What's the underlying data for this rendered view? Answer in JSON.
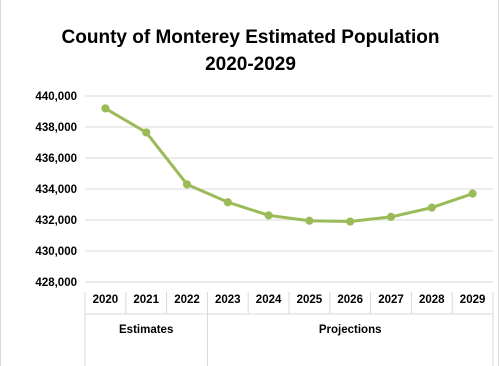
{
  "chart_data": {
    "type": "line",
    "title": "County of Monterey Estimated Population",
    "subtitle": "2020-2029",
    "x": [
      "2020",
      "2021",
      "2022",
      "2023",
      "2024",
      "2025",
      "2026",
      "2027",
      "2028",
      "2029"
    ],
    "series": [
      {
        "values": [
          439200,
          437650,
          434300,
          433150,
          432300,
          431950,
          431900,
          432200,
          432800,
          433700
        ],
        "color": "#9bbb59"
      }
    ],
    "ylim": [
      428000,
      440000
    ],
    "y_ticks": [
      "440,000",
      "438,000",
      "436,000",
      "434,000",
      "432,000",
      "430,000",
      "428,000"
    ],
    "y_tick_values": [
      440000,
      438000,
      436000,
      434000,
      432000,
      430000,
      428000
    ],
    "x_groups": [
      {
        "label": "Estimates",
        "span": [
          0,
          2
        ]
      },
      {
        "label": "Projections",
        "span": [
          3,
          9
        ]
      }
    ],
    "grid": true,
    "legend": "none"
  }
}
